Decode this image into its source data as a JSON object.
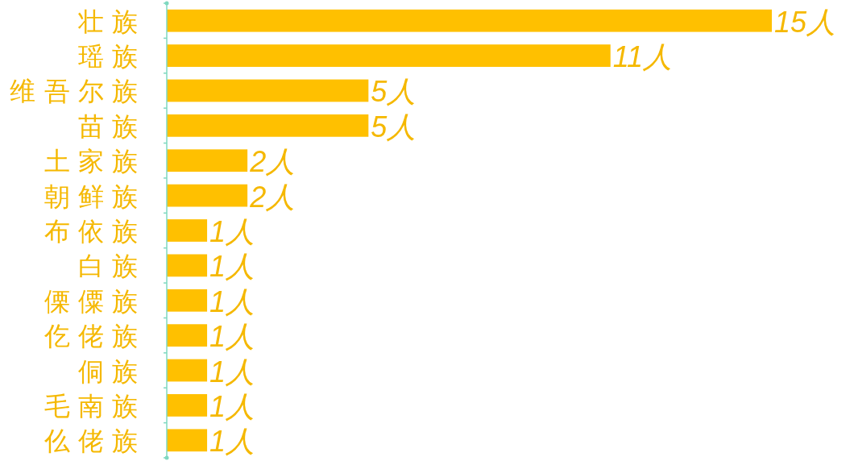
{
  "chart_data": {
    "type": "bar",
    "orientation": "horizontal",
    "categories": [
      "壮 族",
      "瑶 族",
      "维 吾 尔 族",
      "苗 族",
      "土 家 族",
      "朝 鲜 族",
      "布 依 族",
      "白 族",
      "傈 僳 族",
      "仡 佬 族",
      "侗 族",
      "毛 南 族",
      "仫 佬 族"
    ],
    "values": [
      15,
      11,
      5,
      5,
      2,
      2,
      1,
      1,
      1,
      1,
      1,
      1,
      1
    ],
    "value_labels": [
      "15人",
      "11人",
      "5人",
      "5人",
      "2人",
      "2人",
      "1人",
      "1人",
      "1人",
      "1人",
      "1人",
      "1人",
      "1人"
    ],
    "color": "#ffc000"
  }
}
